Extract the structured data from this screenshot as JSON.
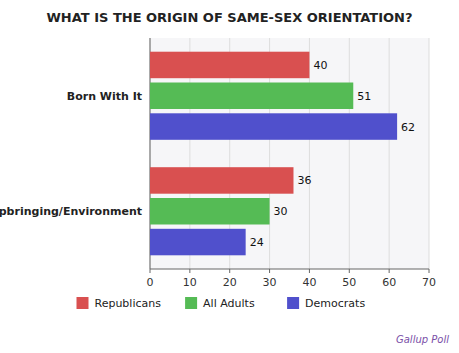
{
  "chart_data": {
    "type": "bar",
    "orientation": "horizontal",
    "title": "WHAT IS THE ORIGIN OF SAME-SEX ORIENTATION?",
    "categories": [
      "Born With It",
      "Upbringing/Environment"
    ],
    "series": [
      {
        "name": "Republicans",
        "color": "#d95050",
        "values": [
          40,
          36
        ]
      },
      {
        "name": "All Adults",
        "color": "#55bb55",
        "values": [
          51,
          30
        ]
      },
      {
        "name": "Democrats",
        "color": "#5050cc",
        "values": [
          62,
          24
        ]
      }
    ],
    "xlim": [
      0,
      70
    ],
    "xticks": [
      0,
      10,
      20,
      30,
      40,
      50,
      60,
      70
    ],
    "grid": true,
    "data_labels": true,
    "legend": "bottom",
    "annotations": [
      "Gallup Poll"
    ]
  }
}
